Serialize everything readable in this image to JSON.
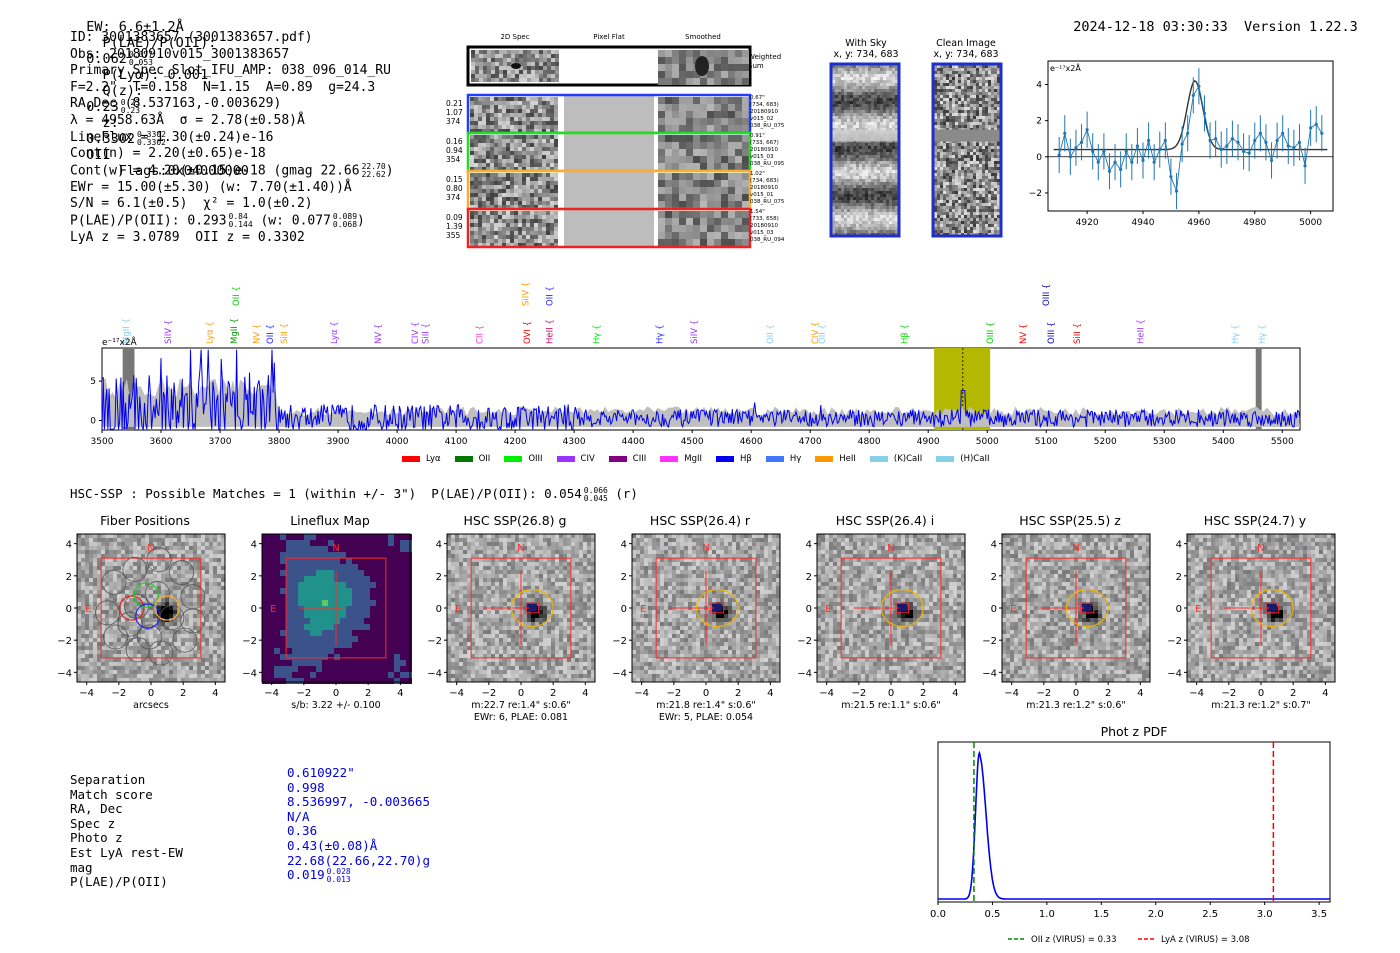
{
  "header": {
    "ew": "EW: 6.6±1.2Å",
    "plae_label": "P(LAE)/P(OII):",
    "plae_val": "0.062",
    "plae_hi": "0.077",
    "plae_lo": "0.053",
    "plya": "P(Lyα): 0.001",
    "q_label": "Q(z):",
    "q_val": "0.23",
    "q_hi": "0.23",
    "q_lo": "0.23",
    "z_label": "z:",
    "z_val": "0.3302",
    "z_hi": "0.3302",
    "z_lo": "0.3302",
    "z_line": "OII",
    "flags": "Flags:0x04000000",
    "datetime": "2024-12-18 03:30:33",
    "version": "Version 1.22.3"
  },
  "info": {
    "id": "ID: 3001383657 (3001383657.pdf)",
    "obs": "Obs: 20180910v015_3001383657",
    "ifu": "Primary Spec_Slot_IFU_AMP: 038_096_014_RU",
    "fit": "F=2.2\"  T=0.158  N=1.15  A=0.89  g=24.3",
    "radec": "RA,Dec (8.537163,-0.003629)",
    "lambda": "λ = 4958.63Å  σ = 2.78(±0.58)Å",
    "lineflux": "LineFlux = 1.30(±0.24)e-16",
    "contn": "Cont(n) = 2.20(±0.65)e-18",
    "contw": "Cont(w) = 4.20(±0.15)e-18 (gmag 22.66",
    "contw_hi": "22.70",
    "contw_lo": "22.62",
    "contw_end": ")",
    "ewr": "EWr = 15.00(±5.30) (w: 7.70(±1.40))Å",
    "sn": "S/N = 6.1(±0.5)  χ² = 1.0(±0.2)",
    "plae": "P(LAE)/P(OII): 0.293",
    "plae_hi": "0.84",
    "plae_lo": "0.144",
    "plae_w": "(w: 0.077",
    "plae_w_hi": "0.089",
    "plae_w_lo": "0.068",
    "plae_w_end": ")",
    "lyaz": "LyA z = 3.0789  OII z = 0.3302"
  },
  "cutouts": {
    "col_2d": "2D Spec",
    "col_flat": "Pixel Flat",
    "col_smooth": "Smoothed",
    "weighted": "Weighted Sum",
    "rows": [
      {
        "left": [
          "0.21",
          "1.07",
          "374"
        ],
        "right": [
          "0.67\"",
          "(734, 683)",
          "20180910",
          "v015_02",
          "038_RU_075"
        ],
        "color": "#1f3fff"
      },
      {
        "left": [
          "0.16",
          "0.94",
          "354"
        ],
        "right": [
          "0.91\"",
          "(733, 667)",
          "20180910",
          "v015_03",
          "038_RU_095"
        ],
        "color": "#22dd22"
      },
      {
        "left": [
          "0.15",
          "0.80",
          "374"
        ],
        "right": [
          "1.02\"",
          "(734, 683)",
          "20180910",
          "v015_01",
          "038_RU_075"
        ],
        "color": "#ffaa33"
      },
      {
        "left": [
          "0.09",
          "1.39",
          "355"
        ],
        "right": [
          "1.54\"",
          "(733, 658)",
          "20180910",
          "v015_03",
          "038_RU_094"
        ],
        "color": "#ee2222"
      }
    ]
  },
  "sky": {
    "with_sky": "With Sky",
    "with_sky_xy": "x, y: 734, 683",
    "clean": "Clean Image",
    "clean_xy": "x, y: 734, 683"
  },
  "zoom_plot": {
    "ylabel": "e⁻¹⁷x2Å",
    "xticks": [
      "4920",
      "4940",
      "4960",
      "4980",
      "5000"
    ],
    "yticks": [
      "4",
      "2",
      "0",
      "−2"
    ]
  },
  "spectrum": {
    "ylabel": "e⁻¹⁷x2Å",
    "xticks": [
      "3500",
      "3600",
      "3700",
      "3800",
      "3900",
      "4000",
      "4100",
      "4200",
      "4300",
      "4400",
      "4500",
      "4600",
      "4700",
      "4800",
      "4900",
      "5000",
      "5100",
      "5200",
      "5300",
      "5400",
      "5500"
    ],
    "yticks": [
      "5",
      "0"
    ],
    "line_labels": [
      {
        "t": "MgII",
        "c": "#87ceeb",
        "w": 3541,
        "row": 2
      },
      {
        "t": "SiIV",
        "c": "#9933ff",
        "w": 3612,
        "row": 2
      },
      {
        "t": "Lyα",
        "c": "#ff9900",
        "w": 3682,
        "row": 2
      },
      {
        "t": "MgII",
        "c": "#009900",
        "w": 3724,
        "row": 2
      },
      {
        "t": "OII",
        "c": "#00cc00",
        "w": 3727,
        "row": 0
      },
      {
        "t": "NV",
        "c": "#ff9900",
        "w": 3762,
        "row": 2
      },
      {
        "t": "SiII",
        "c": "#ff9900",
        "w": 3808,
        "row": 2
      },
      {
        "t": "OII",
        "c": "#2222ff",
        "w": 3785,
        "row": 2
      },
      {
        "t": "Lyα",
        "c": "#9933ff",
        "w": 3893,
        "row": 2
      },
      {
        "t": "NV",
        "c": "#9933ff",
        "w": 3968,
        "row": 2
      },
      {
        "t": "CIV",
        "c": "#9933ff",
        "w": 4030,
        "row": 2
      },
      {
        "t": "SiII",
        "c": "#9933ff",
        "w": 4048,
        "row": 2
      },
      {
        "t": "CII",
        "c": "#ff33cc",
        "w": 4140,
        "row": 2
      },
      {
        "t": "OVI",
        "c": "#ff0000",
        "w": 4220,
        "row": 2
      },
      {
        "t": "SiIV",
        "c": "#ff9900",
        "w": 4218,
        "row": 0
      },
      {
        "t": "OII",
        "c": "#2222ff",
        "w": 4258,
        "row": 0
      },
      {
        "t": "HeII",
        "c": "#cc0066",
        "w": 4258,
        "row": 2
      },
      {
        "t": "Hγ",
        "c": "#00dd00",
        "w": 4338,
        "row": 2
      },
      {
        "t": "Hγ",
        "c": "#2222ff",
        "w": 4445,
        "row": 2
      },
      {
        "t": "SiIV",
        "c": "#9933ff",
        "w": 4503,
        "row": 2
      },
      {
        "t": "OII",
        "c": "#87ceeb",
        "w": 4632,
        "row": 2
      },
      {
        "t": "CIV",
        "c": "#ff9900",
        "w": 4708,
        "row": 2
      },
      {
        "t": "OII",
        "c": "#87ceeb",
        "w": 4720,
        "row": 2
      },
      {
        "t": "Hβ",
        "c": "#00dd00",
        "w": 4860,
        "row": 2
      },
      {
        "t": "OIII",
        "c": "#00cc00",
        "w": 5005,
        "row": 2
      },
      {
        "t": "NV",
        "c": "#ff0000",
        "w": 5061,
        "row": 2
      },
      {
        "t": "OIII",
        "c": "#0000cc",
        "w": 5100,
        "row": 0
      },
      {
        "t": "OIII",
        "c": "#0000cc",
        "w": 5108,
        "row": 2
      },
      {
        "t": "SiII",
        "c": "#ff0000",
        "w": 5152,
        "row": 2
      },
      {
        "t": "HeII",
        "c": "#9933ff",
        "w": 5260,
        "row": 2
      },
      {
        "t": "Hγ",
        "c": "#87ceeb",
        "w": 5420,
        "row": 2
      },
      {
        "t": "Hγ",
        "c": "#87ceeb",
        "w": 5466,
        "row": 2
      }
    ],
    "legend": [
      {
        "label": "Lyα",
        "color": "#ff0000"
      },
      {
        "label": "OII",
        "color": "#007700"
      },
      {
        "label": "OIII",
        "color": "#00ee00"
      },
      {
        "label": "CIV",
        "color": "#9933ff"
      },
      {
        "label": "CIII",
        "color": "#800080"
      },
      {
        "label": "MgII",
        "color": "#ff33ff"
      },
      {
        "label": "Hβ",
        "color": "#0000ee"
      },
      {
        "label": "Hγ",
        "color": "#4477ff"
      },
      {
        "label": "HeII",
        "color": "#ff9900"
      },
      {
        "label": "(K)CaII",
        "color": "#87ceeb"
      },
      {
        "label": "(H)CaII",
        "color": "#87ceeb"
      }
    ]
  },
  "hsc": {
    "heading": "HSC-SSP : Possible Matches = 1 (within +/- 3\")  P(LAE)/P(OII): 0.054",
    "heading_hi": "0.066",
    "heading_lo": "0.045",
    "heading_end": "(r)",
    "panels": [
      {
        "title": "Fiber Positions",
        "c1": "arcsecs",
        "c2": ""
      },
      {
        "title": "Lineflux Map",
        "c1": "s/b: 3.22 +/- 0.100",
        "c2": ""
      },
      {
        "title": "HSC SSP(26.8) g",
        "c1": "m:22.7  re:1.4\"  s:0.6\"",
        "c2": "EWr: 6, PLAE: 0.081"
      },
      {
        "title": "HSC SSP(26.4) r",
        "c1": "m:21.8  re:1.4\"  s:0.6\"",
        "c2": "EWr: 5, PLAE: 0.054"
      },
      {
        "title": "HSC SSP(26.4) i",
        "c1": "m:21.5  re:1.1\"  s:0.6\"",
        "c2": ""
      },
      {
        "title": "HSC SSP(25.5) z",
        "c1": "m:21.3  re:1.2\"  s:0.6\"",
        "c2": ""
      },
      {
        "title": "HSC SSP(24.7) y",
        "c1": "m:21.3  re:1.2\"  s:0.7\"",
        "c2": ""
      }
    ],
    "axis_ticks": [
      "4",
      "2",
      "0",
      "−2",
      "−4"
    ],
    "axis_xticks": [
      "−4",
      "−2",
      "0",
      "2",
      "4"
    ],
    "north": "N",
    "east": "E"
  },
  "match": {
    "labels": [
      "Separation",
      "Match score",
      "RA, Dec",
      "Spec z",
      "Photo z",
      "Est LyA rest-EW",
      "mag",
      "P(LAE)/P(OII)"
    ],
    "values": [
      "0.610922\"",
      "0.998",
      "8.536997, -0.003665",
      "N/A",
      "0.36",
      "0.43(±0.08)Å",
      "22.68(22.66,22.70)g",
      "0.019"
    ],
    "plae_hi": "0.028",
    "plae_lo": "0.013"
  },
  "chart_data": [
    {
      "type": "line",
      "title": "",
      "xlabel": "",
      "ylabel": "e⁻¹⁷x2Å",
      "xlim": [
        3500,
        5530
      ],
      "ylim": [
        -1.2,
        9.2
      ],
      "emission_line_wavelength": 4958.63,
      "highlight_band": [
        4910,
        5005
      ],
      "masked_regions": [
        [
          3535,
          3555
        ],
        [
          5455,
          5465
        ]
      ],
      "series": [
        {
          "name": "spectrum",
          "color": "#0000ee",
          "description": "noisy spectrum, high variance blueward of 3800 with peaks up to ~9, narrow emission near 4958"
        }
      ]
    },
    {
      "type": "scatter",
      "title": "",
      "xlabel": "",
      "ylabel": "e⁻¹⁷x2Å",
      "xlim": [
        4906,
        5008
      ],
      "ylim": [
        -3,
        5.3
      ],
      "x": [
        4910,
        4912,
        4914,
        4916,
        4918,
        4920,
        4922,
        4924,
        4926,
        4928,
        4930,
        4932,
        4934,
        4936,
        4938,
        4940,
        4942,
        4944,
        4946,
        4948,
        4950,
        4952,
        4954,
        4956,
        4958,
        4960,
        4962,
        4964,
        4966,
        4968,
        4970,
        4972,
        4974,
        4976,
        4978,
        4980,
        4982,
        4984,
        4986,
        4988,
        4990,
        4992,
        4994,
        4996,
        4998,
        5000,
        5002,
        5004
      ],
      "y": [
        0.1,
        1.3,
        0.0,
        0.5,
        0.8,
        1.5,
        0.3,
        -0.3,
        0.3,
        -0.8,
        -0.3,
        -0.7,
        0.3,
        -0.3,
        0.6,
        -0.2,
        0.9,
        -0.3,
        0.4,
        0.9,
        -1.1,
        -1.9,
        0.7,
        1.3,
        3.4,
        3.9,
        2.4,
        0.9,
        1.0,
        0.4,
        0.6,
        1.0,
        0.8,
        0.3,
        0.2,
        0.9,
        1.3,
        0.8,
        -0.2,
        0.9,
        1.3,
        0.6,
        0.5,
        0.8,
        -0.5,
        1.6,
        1.8,
        1.3
      ],
      "err": 1.0,
      "fit": {
        "baseline": 0.4,
        "amplitude": 3.8,
        "center": 4958.6,
        "sigma": 2.8
      }
    },
    {
      "type": "line",
      "title": "Phot z PDF",
      "xlabel": "",
      "ylabel": "",
      "xlim": [
        0.0,
        3.6
      ],
      "xticks": [
        "0.0",
        "0.5",
        "1.0",
        "1.5",
        "2.0",
        "2.5",
        "3.0",
        "3.5"
      ],
      "series": [
        {
          "name": "PDF",
          "color": "#0000ee",
          "peak_x": 0.36
        }
      ],
      "vlines": [
        {
          "label": "OII z (VIRUS) = 0.33",
          "x": 0.33,
          "color": "#008800"
        },
        {
          "label": "LyA z (VIRUS) = 3.08",
          "x": 3.08,
          "color": "#ff0000"
        }
      ]
    }
  ]
}
